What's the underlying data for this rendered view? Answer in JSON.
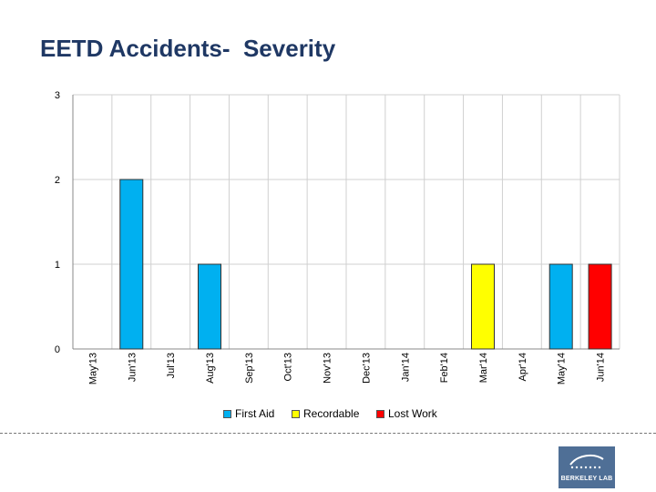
{
  "title": "EETD Accidents-  Severity",
  "chart_data": {
    "type": "bar",
    "categories": [
      "May'13",
      "Jun'13",
      "Jul'13",
      "Aug'13",
      "Sep'13",
      "Oct'13",
      "Nov'13",
      "Dec'13",
      "Jan'14",
      "Feb'14",
      "Mar'14",
      "Apr'14",
      "May'14",
      "Jun'14"
    ],
    "series": [
      {
        "name": "First Aid",
        "color": "#00b0f0",
        "values": [
          0,
          2,
          0,
          1,
          0,
          0,
          0,
          0,
          0,
          0,
          0,
          0,
          1,
          0
        ]
      },
      {
        "name": "Recordable",
        "color": "#ffff00",
        "values": [
          0,
          0,
          0,
          0,
          0,
          0,
          0,
          0,
          0,
          0,
          1,
          0,
          0,
          0
        ]
      },
      {
        "name": "Lost Work",
        "color": "#ff0000",
        "values": [
          0,
          0,
          0,
          0,
          0,
          0,
          0,
          0,
          0,
          0,
          0,
          0,
          0,
          1
        ]
      }
    ],
    "stacked": true,
    "ylim": [
      0,
      3
    ],
    "yticks": [
      0,
      1,
      2,
      3
    ],
    "grid": true,
    "xlabel": "",
    "ylabel": "",
    "legend_position": "bottom"
  },
  "logo": {
    "text": "BERKELEY LAB",
    "icon": "berkeley-lab-logo-icon",
    "color": "#4f6f96"
  }
}
